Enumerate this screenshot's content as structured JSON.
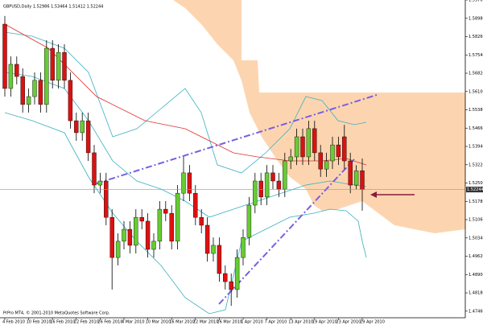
{
  "chart_data": {
    "type": "candlestick",
    "title": "GBPUSD,Daily 1.52986 1.53464 1.51412 1.52244",
    "footer": "PrPro MT4, © 2001-2010 MetaQuotes Software Corp.",
    "up_color": "#66cc33",
    "down_color": "#dd1111",
    "categories": [
      "4 Feb 2010",
      null,
      null,
      null,
      "10 Feb 2010",
      null,
      null,
      null,
      "16 Feb 2010",
      null,
      null,
      null,
      "22 Feb 2010",
      null,
      null,
      null,
      "26 Feb 2010",
      null,
      null,
      null,
      "4 Mar 2010",
      null,
      null,
      null,
      "10 Mar 2010",
      null,
      null,
      null,
      "16 Mar 2010",
      null,
      null,
      null,
      "22 Mar 2010",
      null,
      null,
      null,
      "26 Mar 2010",
      null,
      null,
      null,
      "1 Apr 2010",
      null,
      null,
      null,
      "7 Apr 2010",
      null,
      null,
      null,
      "13 Apr 2010",
      null,
      null,
      null,
      "19 Apr 2010",
      null,
      null,
      null,
      "23 Apr 2010",
      null,
      null,
      null,
      "29 Apr 2010"
    ],
    "open": [
      1.5875,
      1.5622,
      1.5717,
      1.5669,
      1.5559,
      1.559,
      1.5654,
      1.5559,
      1.578,
      1.5654,
      1.5764,
      1.5654,
      1.5495,
      1.5448,
      1.5495,
      1.5369,
      1.5242,
      1.5258,
      1.5115,
      1.4957,
      1.5021,
      1.5068,
      1.5005,
      1.5115,
      1.51,
      1.4989,
      1.5021,
      1.5147,
      1.5131,
      1.5021,
      1.521,
      1.529,
      1.521,
      1.5115,
      1.5084,
      1.4973,
      1.5005,
      1.4894,
      1.4862,
      1.4831,
      1.4957,
      1.5036,
      1.5163,
      1.5258,
      1.5195,
      1.529,
      1.5258,
      1.5226,
      1.5337,
      1.5353,
      1.5432,
      1.5353,
      1.5464,
      1.5369,
      1.5305,
      1.5337,
      1.54,
      1.5432,
      1.5337,
      1.5242,
      1.52986
    ],
    "high": [
      1.5907,
      1.5748,
      1.5748,
      1.5701,
      1.5622,
      1.5685,
      1.5685,
      1.5812,
      1.5812,
      1.5796,
      1.5796,
      1.5685,
      1.5527,
      1.5527,
      1.5527,
      1.54,
      1.529,
      1.529,
      1.5147,
      1.5052,
      1.51,
      1.51,
      1.5147,
      1.5147,
      1.5131,
      1.5052,
      1.5179,
      1.5179,
      1.5163,
      1.5242,
      1.5353,
      1.5321,
      1.5242,
      1.5147,
      1.5115,
      1.5036,
      1.5036,
      1.4926,
      1.4894,
      1.4989,
      1.5068,
      1.5195,
      1.529,
      1.529,
      1.5321,
      1.5321,
      1.529,
      1.5369,
      1.5384,
      1.5464,
      1.5464,
      1.5495,
      1.5495,
      1.54,
      1.5369,
      1.5432,
      1.5432,
      1.5479,
      1.5369,
      1.532,
      1.53464
    ],
    "low": [
      1.559,
      1.559,
      1.5638,
      1.5527,
      1.5527,
      1.5559,
      1.5527,
      1.5527,
      1.5622,
      1.5622,
      1.5622,
      1.5464,
      1.5416,
      1.5416,
      1.5337,
      1.521,
      1.521,
      1.5084,
      1.4831,
      1.4926,
      1.4989,
      1.4973,
      1.4973,
      1.5068,
      1.4957,
      1.4957,
      1.4989,
      1.51,
      1.4989,
      1.4989,
      1.5179,
      1.5179,
      1.5084,
      1.5052,
      1.4941,
      1.4941,
      1.4862,
      1.4831,
      1.4767,
      1.4799,
      1.4926,
      1.5005,
      1.5131,
      1.5163,
      1.5163,
      1.5226,
      1.5195,
      1.5195,
      1.5305,
      1.5321,
      1.5321,
      1.5321,
      1.5337,
      1.5274,
      1.5274,
      1.5305,
      1.5321,
      1.5305,
      1.521,
      1.5226,
      1.51412
    ],
    "close": [
      1.5622,
      1.5717,
      1.5669,
      1.5559,
      1.559,
      1.5654,
      1.5559,
      1.578,
      1.5654,
      1.5764,
      1.5654,
      1.5495,
      1.5448,
      1.5495,
      1.5369,
      1.5242,
      1.5258,
      1.5115,
      1.4957,
      1.5021,
      1.5068,
      1.5005,
      1.5115,
      1.51,
      1.4989,
      1.5021,
      1.5147,
      1.5131,
      1.5021,
      1.521,
      1.529,
      1.521,
      1.5115,
      1.5084,
      1.4973,
      1.5005,
      1.4894,
      1.4862,
      1.4831,
      1.4957,
      1.5036,
      1.5163,
      1.5258,
      1.5195,
      1.529,
      1.5258,
      1.5226,
      1.5337,
      1.5353,
      1.5432,
      1.5353,
      1.5464,
      1.5369,
      1.5305,
      1.5337,
      1.54,
      1.5353,
      1.5337,
      1.5242,
      1.5298,
      1.52244
    ],
    "ylim": [
      1.472,
      1.597
    ],
    "yticks": [
      {
        "value": 1.597,
        "label": "1.59700"
      },
      {
        "value": 1.5898,
        "label": "1.58980"
      },
      {
        "value": 1.5826,
        "label": "1.58260"
      },
      {
        "value": 1.5754,
        "label": "1.57540"
      },
      {
        "value": 1.5682,
        "label": "1.56820"
      },
      {
        "value": 1.561,
        "label": "1.56100"
      },
      {
        "value": 1.5538,
        "label": "1.55380"
      },
      {
        "value": 1.5466,
        "label": "1.54660"
      },
      {
        "value": 1.5394,
        "label": "1.53940"
      },
      {
        "value": 1.5322,
        "label": "1.53220"
      },
      {
        "value": 1.525,
        "label": "1.52500"
      },
      {
        "value": 1.5178,
        "label": "1.51780"
      },
      {
        "value": 1.5106,
        "label": "1.51060"
      },
      {
        "value": 1.5034,
        "label": "1.50340"
      },
      {
        "value": 1.4962,
        "label": "1.49620"
      },
      {
        "value": 1.489,
        "label": "1.48900"
      },
      {
        "value": 1.4818,
        "label": "1.48180"
      },
      {
        "value": 1.4746,
        "label": "1.47460"
      }
    ]
  }
}
